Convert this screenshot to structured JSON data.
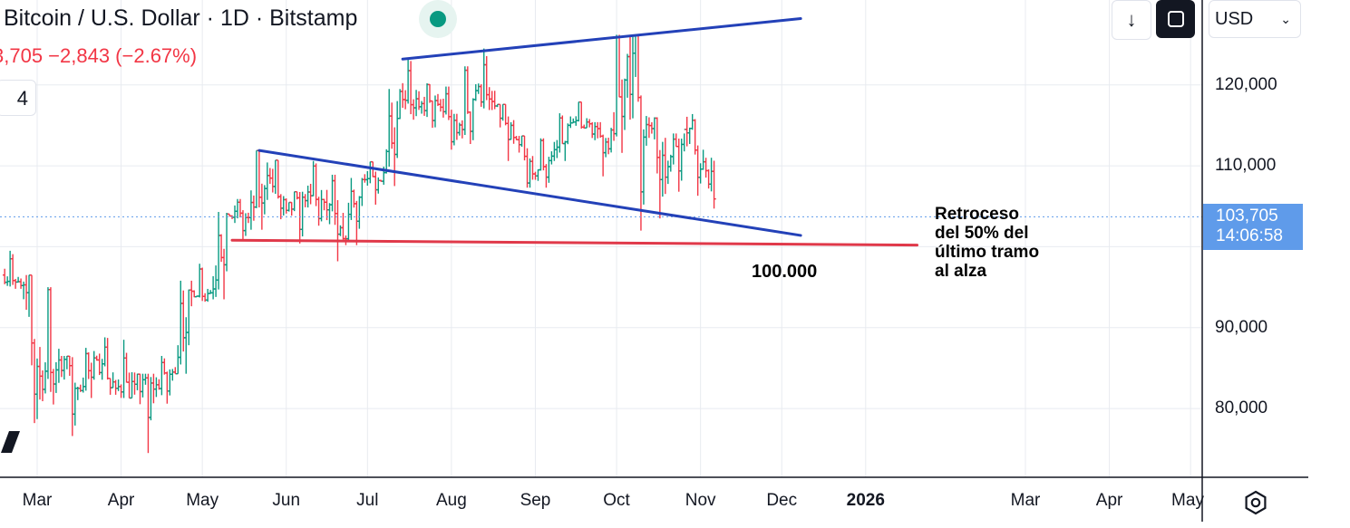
{
  "header": {
    "title": "Bitcoin / U.S. Dollar · 1D · Bitstamp",
    "change": "3,705 −2,843 (−2.67%)",
    "indicator_count": "4",
    "status_color": "#089981"
  },
  "toolbar": {
    "download_icon": "arrow-down-icon",
    "fullscreen_icon": "fullscreen-icon",
    "currency": "USD"
  },
  "price_tag": {
    "price": "103,705",
    "countdown": "14:06:58",
    "color": "#5f9bea"
  },
  "annotations": {
    "retracement_note": [
      "Retroceso",
      "del 50% del",
      "último tramo",
      "al alza"
    ],
    "level_label": "100.000"
  },
  "chart_data": {
    "type": "bar",
    "title": "Bitcoin / U.S. Dollar · 1D · Bitstamp",
    "xlabel": "",
    "ylabel": "",
    "x_ticks": [
      "Mar",
      "Apr",
      "May",
      "Jun",
      "Jul",
      "Aug",
      "Sep",
      "Oct",
      "Nov",
      "Dec",
      "2026",
      "Mar",
      "Apr",
      "May"
    ],
    "y_ticks": [
      {
        "value": 80000,
        "label": "80,000"
      },
      {
        "value": 90000,
        "label": "90,000"
      },
      {
        "value": 110000,
        "label": "110,000"
      },
      {
        "value": 120000,
        "label": "120,000"
      }
    ],
    "ylim": [
      71500,
      130500
    ],
    "grid": true,
    "up_color": "#089981",
    "down_color": "#f23645",
    "last_price": 103705,
    "ohlc_weekly": [
      {
        "date": "2025-02-17",
        "o": 96500,
        "h": 99500,
        "l": 94800,
        "c": 95200
      },
      {
        "date": "2025-02-24",
        "o": 95200,
        "h": 96500,
        "l": 78200,
        "c": 84000
      },
      {
        "date": "2025-03-03",
        "o": 84000,
        "h": 95000,
        "l": 80500,
        "c": 86000
      },
      {
        "date": "2025-03-10",
        "o": 86000,
        "h": 86500,
        "l": 76600,
        "c": 82500
      },
      {
        "date": "2025-03-17",
        "o": 82500,
        "h": 87500,
        "l": 81300,
        "c": 86000
      },
      {
        "date": "2025-03-24",
        "o": 86000,
        "h": 88800,
        "l": 81700,
        "c": 82500
      },
      {
        "date": "2025-03-31",
        "o": 82500,
        "h": 88500,
        "l": 81300,
        "c": 83000
      },
      {
        "date": "2025-04-07",
        "o": 83000,
        "h": 84300,
        "l": 74500,
        "c": 82400
      },
      {
        "date": "2025-04-14",
        "o": 82400,
        "h": 86500,
        "l": 80600,
        "c": 84500
      },
      {
        "date": "2025-04-21",
        "o": 84500,
        "h": 95800,
        "l": 84300,
        "c": 94500
      },
      {
        "date": "2025-04-28",
        "o": 94500,
        "h": 97900,
        "l": 93200,
        "c": 94300
      },
      {
        "date": "2025-05-05",
        "o": 94300,
        "h": 104300,
        "l": 93500,
        "c": 103800
      },
      {
        "date": "2025-05-12",
        "o": 103800,
        "h": 105900,
        "l": 100800,
        "c": 103600
      },
      {
        "date": "2025-05-19",
        "o": 103600,
        "h": 111900,
        "l": 102100,
        "c": 108800
      },
      {
        "date": "2025-05-26",
        "o": 108800,
        "h": 110700,
        "l": 103400,
        "c": 104500
      },
      {
        "date": "2025-06-02",
        "o": 104500,
        "h": 106800,
        "l": 100400,
        "c": 105700
      },
      {
        "date": "2025-06-09",
        "o": 105700,
        "h": 110600,
        "l": 102600,
        "c": 105500
      },
      {
        "date": "2025-06-16",
        "o": 105500,
        "h": 108900,
        "l": 98200,
        "c": 101000
      },
      {
        "date": "2025-06-23",
        "o": 101000,
        "h": 108500,
        "l": 100200,
        "c": 108300
      },
      {
        "date": "2025-06-30",
        "o": 108300,
        "h": 110500,
        "l": 105200,
        "c": 108100
      },
      {
        "date": "2025-07-07",
        "o": 108100,
        "h": 119500,
        "l": 107500,
        "c": 119200
      },
      {
        "date": "2025-07-14",
        "o": 119200,
        "h": 123200,
        "l": 115700,
        "c": 117300
      },
      {
        "date": "2025-07-21",
        "o": 117300,
        "h": 120200,
        "l": 114700,
        "c": 117600
      },
      {
        "date": "2025-07-28",
        "o": 117600,
        "h": 119800,
        "l": 112000,
        "c": 114100
      },
      {
        "date": "2025-08-04",
        "o": 114100,
        "h": 122300,
        "l": 112700,
        "c": 119300
      },
      {
        "date": "2025-08-11",
        "o": 119300,
        "h": 124500,
        "l": 116900,
        "c": 117400
      },
      {
        "date": "2025-08-18",
        "o": 117400,
        "h": 117600,
        "l": 110600,
        "c": 113500
      },
      {
        "date": "2025-08-25",
        "o": 113500,
        "h": 113700,
        "l": 107300,
        "c": 109000
      },
      {
        "date": "2025-09-01",
        "o": 109000,
        "h": 113400,
        "l": 107300,
        "c": 111200
      },
      {
        "date": "2025-09-08",
        "o": 111200,
        "h": 116500,
        "l": 110600,
        "c": 115300
      },
      {
        "date": "2025-09-15",
        "o": 115300,
        "h": 117900,
        "l": 114600,
        "c": 115200
      },
      {
        "date": "2025-09-22",
        "o": 115200,
        "h": 115400,
        "l": 108700,
        "c": 112100
      },
      {
        "date": "2025-09-29",
        "o": 112100,
        "h": 126200,
        "l": 111600,
        "c": 123500
      },
      {
        "date": "2025-10-06",
        "o": 123500,
        "h": 126100,
        "l": 102000,
        "c": 115100
      },
      {
        "date": "2025-10-13",
        "o": 115100,
        "h": 116000,
        "l": 103500,
        "c": 108600
      },
      {
        "date": "2025-10-20",
        "o": 108600,
        "h": 114000,
        "l": 106800,
        "c": 114500
      },
      {
        "date": "2025-10-27",
        "o": 114500,
        "h": 116400,
        "l": 106300,
        "c": 110500
      },
      {
        "date": "2025-11-03",
        "o": 110500,
        "h": 111000,
        "l": 103500,
        "c": 103705
      }
    ],
    "drawings": [
      {
        "name": "upper-trendline",
        "color": "#2341b8",
        "from": [
          "2025-07-14",
          123200
        ],
        "to": [
          "2025-12-08",
          128200
        ]
      },
      {
        "name": "lower-trendline",
        "color": "#2341b8",
        "from": [
          "2025-05-22",
          111900
        ],
        "to": [
          "2025-12-08",
          101400
        ]
      },
      {
        "name": "support-line-100000",
        "color": "#e0394a",
        "from": [
          "2025-05-12",
          100800
        ],
        "to": [
          "2026-01-20",
          100200
        ]
      }
    ]
  }
}
